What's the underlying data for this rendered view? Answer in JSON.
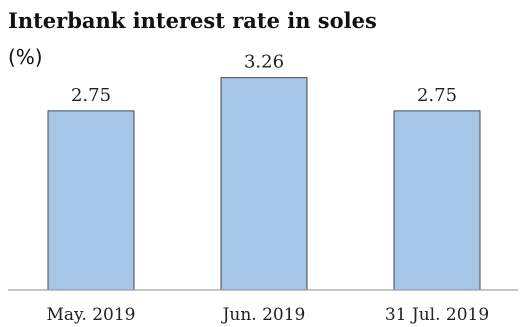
{
  "chart_data": {
    "type": "bar",
    "title": "Interbank interest rate in soles",
    "subtitle": "(%)",
    "categories": [
      "May. 2019",
      "Jun. 2019",
      "31 Jul. 2019"
    ],
    "values": [
      2.75,
      3.26,
      2.75
    ],
    "value_labels": [
      "2.75",
      "3.26",
      "2.75"
    ],
    "xlabel": "",
    "ylabel": "",
    "ylim": [
      0,
      3.5
    ],
    "grid": false,
    "legend": "none",
    "bar_color": "#a6c6e8",
    "bar_edge_color": "#4a4a4a"
  }
}
